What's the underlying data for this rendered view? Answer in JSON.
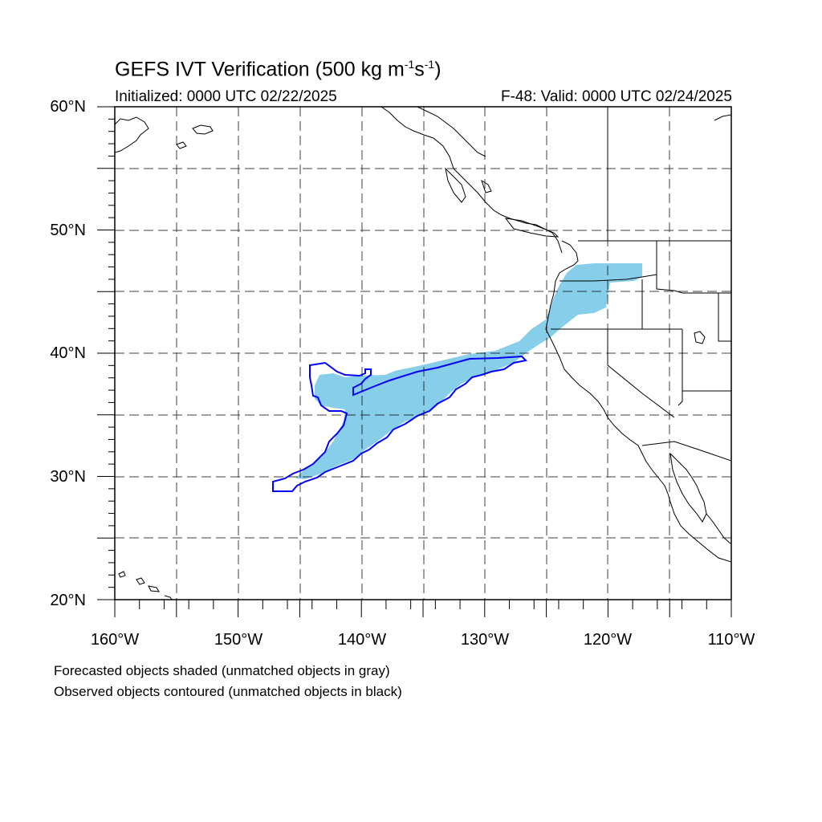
{
  "header": {
    "title": "GEFS IVT Verification (500 kg m",
    "title_exp1": "-1",
    "title_mid": "s",
    "title_exp2": "-1",
    "title_end": ")",
    "initialized": "Initialized: 0000 UTC 02/22/2025",
    "valid": "F-48: Valid: 0000 UTC 02/24/2025"
  },
  "map": {
    "lon_range": [
      -160,
      -110
    ],
    "lat_range": [
      20,
      60
    ],
    "lat_labels": [
      "60°N",
      "50°N",
      "40°N",
      "30°N",
      "20°N"
    ],
    "lon_labels": [
      "160°W",
      "150°W",
      "140°W",
      "130°W",
      "120°W",
      "110°W"
    ],
    "forecast_fill_color": "#87ceeb",
    "observed_contour_color": "#0000ff",
    "gridlines": "dashed"
  },
  "legend": {
    "line1": "Forecasted objects shaded (unmatched objects in gray)",
    "line2": "Observed objects contoured (unmatched objects in black)"
  }
}
